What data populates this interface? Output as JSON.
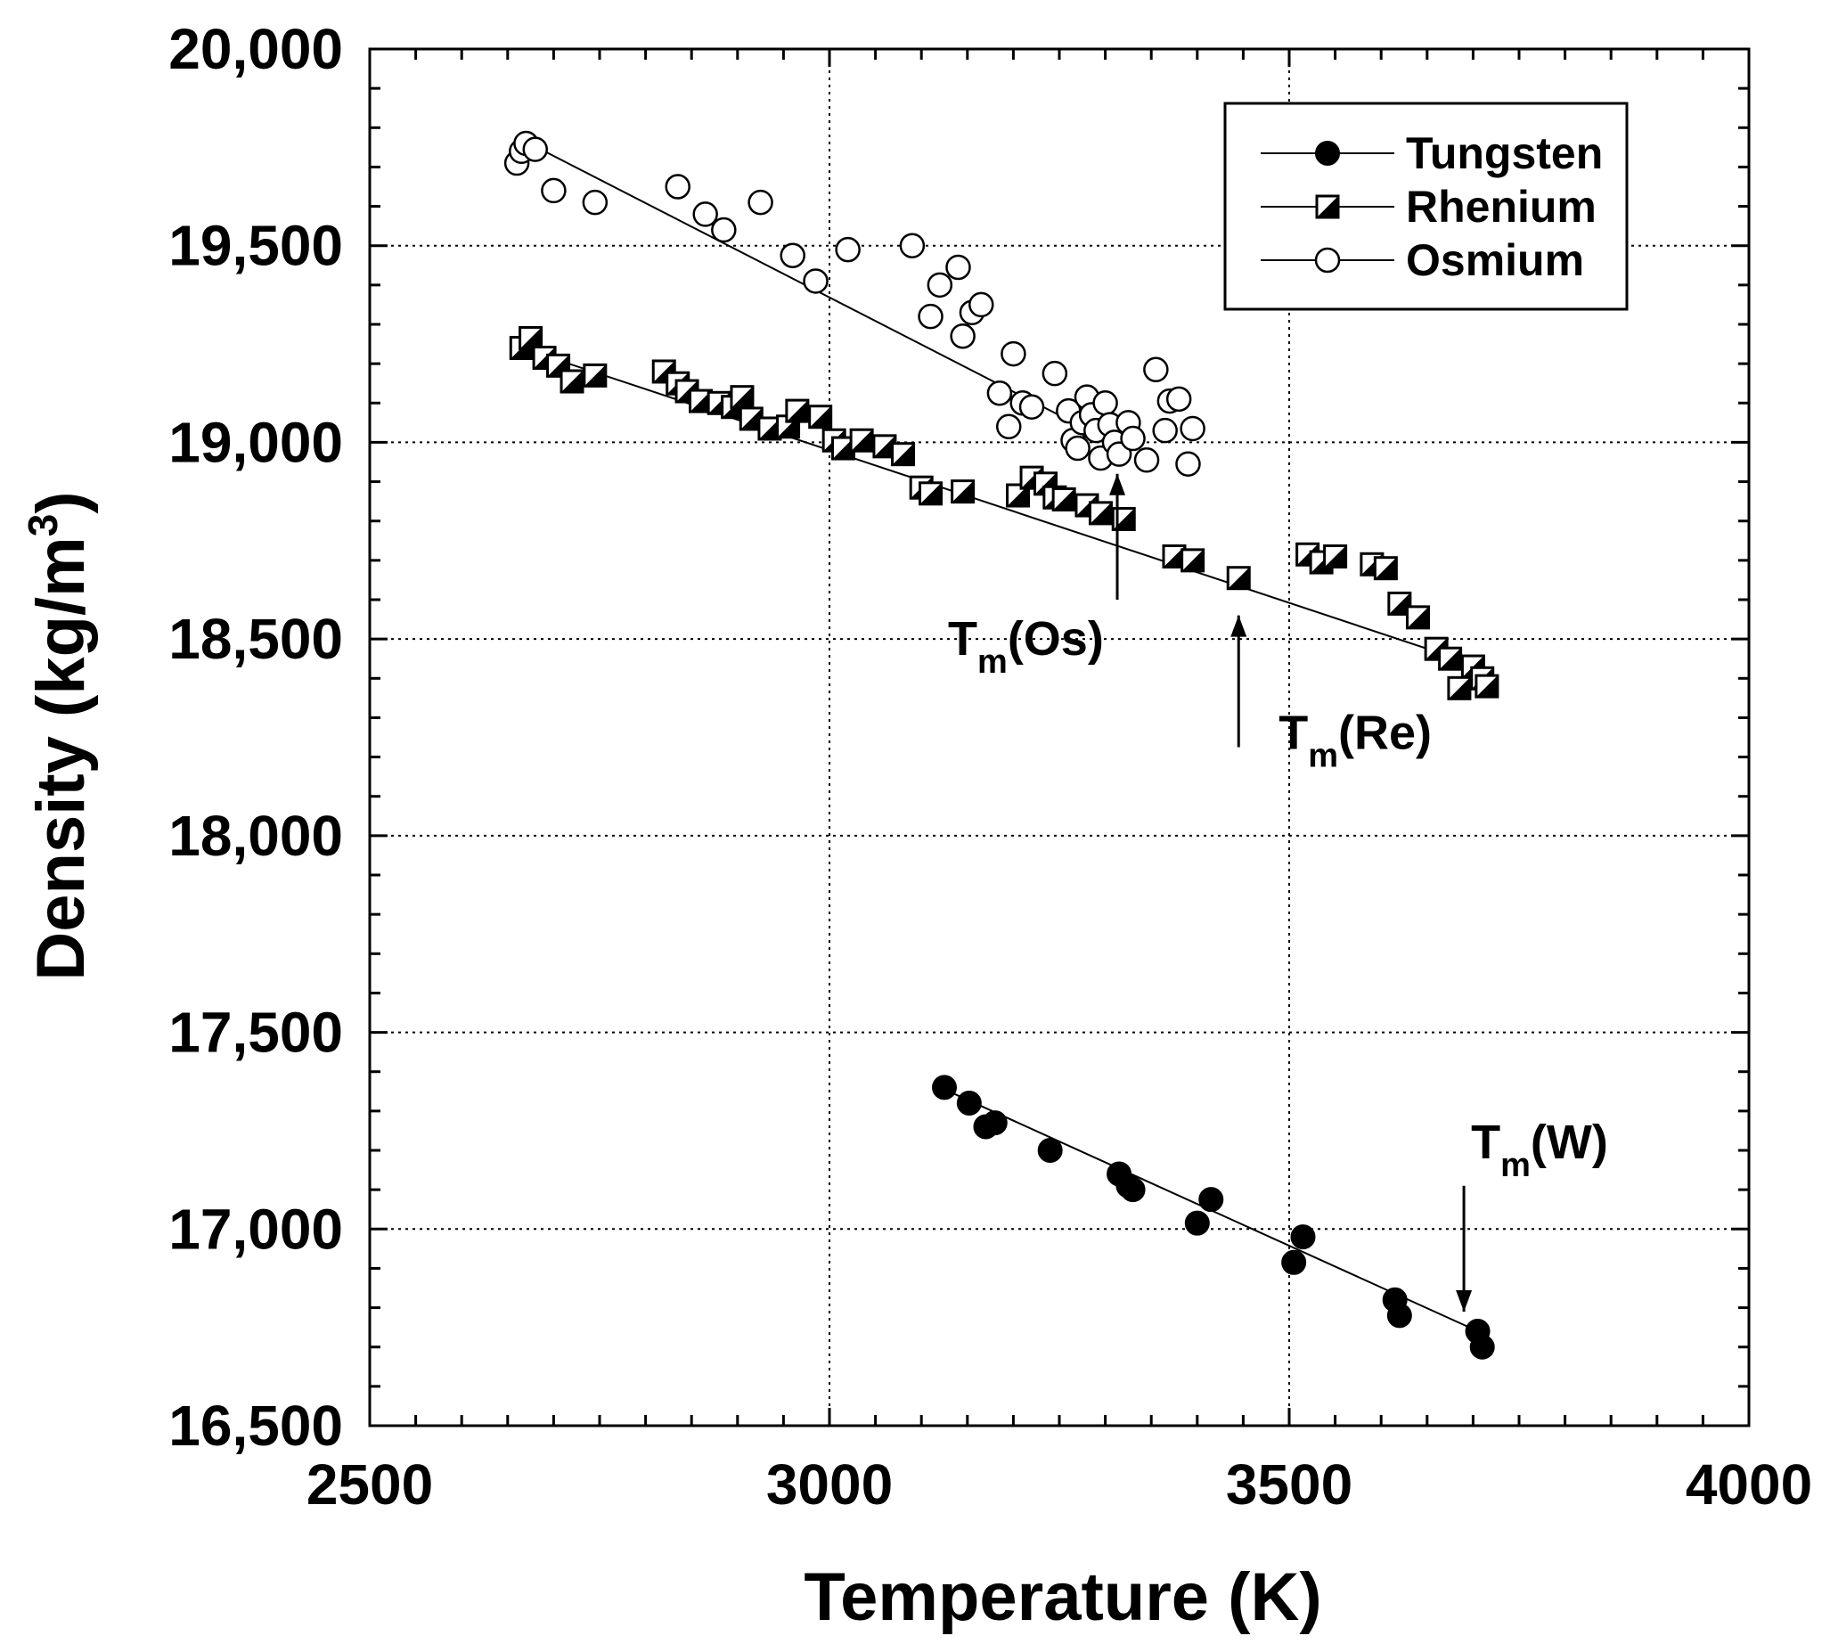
{
  "chart_data": {
    "type": "scatter",
    "title": "",
    "xlabel": "Temperature (K)",
    "ylabel": "Density (kg/m",
    "ylabel_superscript": "3",
    "ylabel_close": ")",
    "xlim": [
      2500,
      4000
    ],
    "ylim": [
      16500,
      20000
    ],
    "x_ticks": [
      2500,
      3000,
      3500,
      4000
    ],
    "x_tick_labels": [
      "2500",
      "3000",
      "3500",
      "4000"
    ],
    "y_ticks": [
      16500,
      17000,
      17500,
      18000,
      18500,
      19000,
      19500,
      20000
    ],
    "y_tick_labels": [
      "16,500",
      "17,000",
      "17,500",
      "18,000",
      "18,500",
      "19,000",
      "19,500",
      "20,000"
    ],
    "grid": true,
    "legend_position": "top-right",
    "series": [
      {
        "name": "Tungsten",
        "marker": "filled-circle",
        "fit": [
          [
            3125,
            17355
          ],
          [
            3710,
            16735
          ]
        ],
        "points": [
          [
            3125,
            17360
          ],
          [
            3152,
            17320
          ],
          [
            3170,
            17260
          ],
          [
            3180,
            17270
          ],
          [
            3240,
            17200
          ],
          [
            3315,
            17140
          ],
          [
            3325,
            17110
          ],
          [
            3330,
            17100
          ],
          [
            3400,
            17015
          ],
          [
            3415,
            17075
          ],
          [
            3505,
            16915
          ],
          [
            3515,
            16980
          ],
          [
            3615,
            16820
          ],
          [
            3620,
            16780
          ],
          [
            3705,
            16740
          ],
          [
            3710,
            16700
          ]
        ]
      },
      {
        "name": "Rhenium",
        "marker": "half-filled-square",
        "fit": [
          [
            2665,
            19240
          ],
          [
            3715,
            18425
          ]
        ],
        "points": [
          [
            2665,
            19240
          ],
          [
            2675,
            19265
          ],
          [
            2690,
            19215
          ],
          [
            2705,
            19195
          ],
          [
            2720,
            19155
          ],
          [
            2745,
            19170
          ],
          [
            2820,
            19180
          ],
          [
            2835,
            19150
          ],
          [
            2845,
            19130
          ],
          [
            2860,
            19105
          ],
          [
            2880,
            19100
          ],
          [
            2895,
            19090
          ],
          [
            2905,
            19115
          ],
          [
            2915,
            19060
          ],
          [
            2935,
            19035
          ],
          [
            2955,
            19040
          ],
          [
            2965,
            19080
          ],
          [
            2990,
            19065
          ],
          [
            3005,
            19005
          ],
          [
            3015,
            18985
          ],
          [
            3035,
            19005
          ],
          [
            3060,
            18990
          ],
          [
            3080,
            18970
          ],
          [
            3100,
            18885
          ],
          [
            3110,
            18870
          ],
          [
            3145,
            18875
          ],
          [
            3205,
            18865
          ],
          [
            3220,
            18910
          ],
          [
            3235,
            18895
          ],
          [
            3245,
            18860
          ],
          [
            3255,
            18855
          ],
          [
            3280,
            18840
          ],
          [
            3295,
            18820
          ],
          [
            3320,
            18805
          ],
          [
            3375,
            18710
          ],
          [
            3395,
            18700
          ],
          [
            3445,
            18655
          ],
          [
            3520,
            18715
          ],
          [
            3535,
            18695
          ],
          [
            3550,
            18710
          ],
          [
            3590,
            18690
          ],
          [
            3605,
            18680
          ],
          [
            3620,
            18590
          ],
          [
            3640,
            18555
          ],
          [
            3660,
            18475
          ],
          [
            3675,
            18450
          ],
          [
            3685,
            18375
          ],
          [
            3700,
            18430
          ],
          [
            3710,
            18400
          ],
          [
            3715,
            18380
          ]
        ]
      },
      {
        "name": "Osmium",
        "marker": "open-circle",
        "fit": [
          [
            2665,
            19770
          ],
          [
            3320,
            18985
          ]
        ],
        "points": [
          [
            2660,
            19710
          ],
          [
            2665,
            19740
          ],
          [
            2670,
            19760
          ],
          [
            2680,
            19745
          ],
          [
            2700,
            19640
          ],
          [
            2745,
            19610
          ],
          [
            2835,
            19650
          ],
          [
            2865,
            19580
          ],
          [
            2885,
            19540
          ],
          [
            2925,
            19610
          ],
          [
            2960,
            19475
          ],
          [
            2985,
            19410
          ],
          [
            3020,
            19490
          ],
          [
            3090,
            19500
          ],
          [
            3110,
            19320
          ],
          [
            3120,
            19400
          ],
          [
            3140,
            19445
          ],
          [
            3145,
            19270
          ],
          [
            3155,
            19330
          ],
          [
            3165,
            19350
          ],
          [
            3185,
            19125
          ],
          [
            3195,
            19040
          ],
          [
            3200,
            19225
          ],
          [
            3210,
            19100
          ],
          [
            3220,
            19090
          ],
          [
            3245,
            19175
          ],
          [
            3260,
            19080
          ],
          [
            3265,
            19005
          ],
          [
            3270,
            18985
          ],
          [
            3275,
            19050
          ],
          [
            3280,
            19115
          ],
          [
            3285,
            19070
          ],
          [
            3290,
            19030
          ],
          [
            3295,
            18960
          ],
          [
            3300,
            19100
          ],
          [
            3305,
            19045
          ],
          [
            3310,
            19000
          ],
          [
            3315,
            18970
          ],
          [
            3325,
            19050
          ],
          [
            3330,
            19010
          ],
          [
            3345,
            18955
          ],
          [
            3355,
            19185
          ],
          [
            3365,
            19030
          ],
          [
            3370,
            19105
          ],
          [
            3380,
            19110
          ],
          [
            3390,
            18945
          ],
          [
            3395,
            19035
          ]
        ]
      }
    ],
    "annotations": [
      {
        "base": "T",
        "sub": "m",
        "rest": "(Os)",
        "x": 3313,
        "y_text": 18460,
        "arrow_from": [
          3313,
          18600
        ],
        "arrow_to": [
          3313,
          18920
        ]
      },
      {
        "base": "T",
        "sub": "m",
        "rest": "(Re)",
        "x": 3445,
        "y_text": 18220,
        "arrow_from": [
          3445,
          18225
        ],
        "arrow_to": [
          3445,
          18560
        ]
      },
      {
        "base": "T",
        "sub": "m",
        "rest": "(W)",
        "x": 3690,
        "y_text": 17180,
        "arrow_from": [
          3690,
          17110
        ],
        "arrow_to": [
          3690,
          16790
        ]
      }
    ]
  }
}
